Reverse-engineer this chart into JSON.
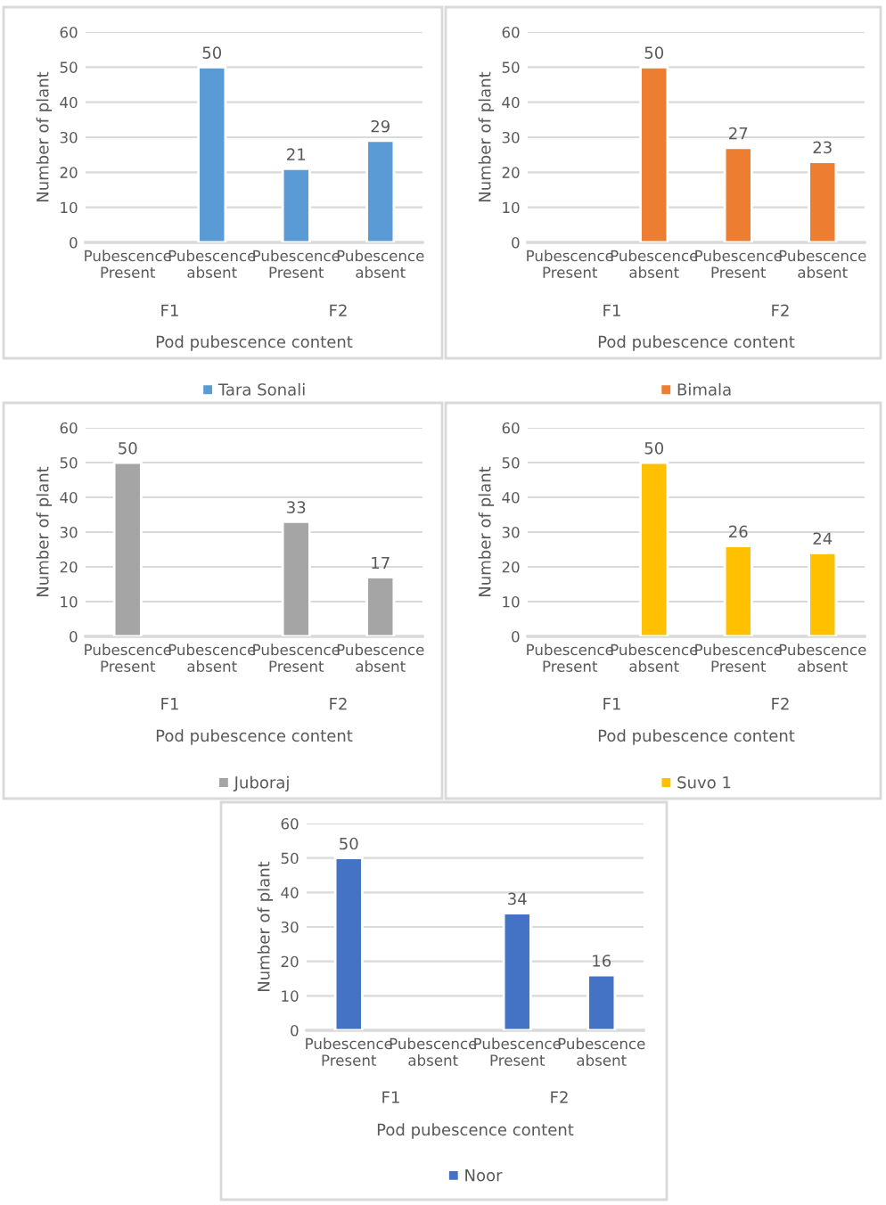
{
  "chart_data": [
    {
      "type": "bar",
      "categories": [
        "Pubescence\nPresent",
        "Pubescence\nabsent",
        "Pubescence\nPresent",
        "Pubescence\nabsent"
      ],
      "series": [
        {
          "name": "Tara Sonali",
          "color": "#5b9bd5",
          "values": [
            null,
            50,
            21,
            29
          ]
        }
      ],
      "xlabel": "Pod pubescence content",
      "ylabel": "Number of plant",
      "annotations": [
        "F1",
        "F2"
      ],
      "ylim": [
        0,
        60
      ],
      "yticks": [
        0,
        10,
        20,
        30,
        40,
        50,
        60
      ],
      "grid": "y",
      "legend": "bottom",
      "data_labels": true
    },
    {
      "type": "bar",
      "categories": [
        "Pubescence\nPresent",
        "Pubescence\nabsent",
        "Pubescence\nPresent",
        "Pubescence\nabsent"
      ],
      "series": [
        {
          "name": "Bimala",
          "color": "#ed7d31",
          "values": [
            null,
            50,
            27,
            23
          ]
        }
      ],
      "xlabel": "Pod pubescence content",
      "ylabel": "Number of plant",
      "annotations": [
        "F1",
        "F2"
      ],
      "ylim": [
        0,
        60
      ],
      "yticks": [
        0,
        10,
        20,
        30,
        40,
        50,
        60
      ],
      "grid": "y",
      "legend": "bottom",
      "data_labels": true
    },
    {
      "type": "bar",
      "categories": [
        "Pubescence\nPresent",
        "Pubescence\nabsent",
        "Pubescence\nPresent",
        "Pubescence\nabsent"
      ],
      "series": [
        {
          "name": "Juboraj",
          "color": "#a5a5a5",
          "values": [
            50,
            null,
            33,
            17
          ]
        }
      ],
      "xlabel": "Pod pubescence content",
      "ylabel": "Number of plant",
      "annotations": [
        "F1",
        "F2"
      ],
      "ylim": [
        0,
        60
      ],
      "yticks": [
        0,
        10,
        20,
        30,
        40,
        50,
        60
      ],
      "grid": "y",
      "legend": "bottom",
      "data_labels": true
    },
    {
      "type": "bar",
      "categories": [
        "Pubescence\nPresent",
        "Pubescence\nabsent",
        "Pubescence\nPresent",
        "Pubescence\nabsent"
      ],
      "series": [
        {
          "name": "Suvo 1",
          "color": "#ffc000",
          "values": [
            null,
            50,
            26,
            24
          ]
        }
      ],
      "xlabel": "Pod pubescence content",
      "ylabel": "Number of plant",
      "annotations": [
        "F1",
        "F2"
      ],
      "ylim": [
        0,
        60
      ],
      "yticks": [
        0,
        10,
        20,
        30,
        40,
        50,
        60
      ],
      "grid": "y",
      "legend": "bottom",
      "data_labels": true
    },
    {
      "type": "bar",
      "categories": [
        "Pubescence\nPresent",
        "Pubescence\nabsent",
        "Pubescence\nPresent",
        "Pubescence\nabsent"
      ],
      "series": [
        {
          "name": "Noor",
          "color": "#4472c4",
          "values": [
            50,
            null,
            34,
            16
          ]
        }
      ],
      "xlabel": "Pod pubescence content",
      "ylabel": "Number of plant",
      "annotations": [
        "F1",
        "F2"
      ],
      "ylim": [
        0,
        60
      ],
      "yticks": [
        0,
        10,
        20,
        30,
        40,
        50,
        60
      ],
      "grid": "y",
      "legend": "bottom",
      "data_labels": true
    }
  ]
}
